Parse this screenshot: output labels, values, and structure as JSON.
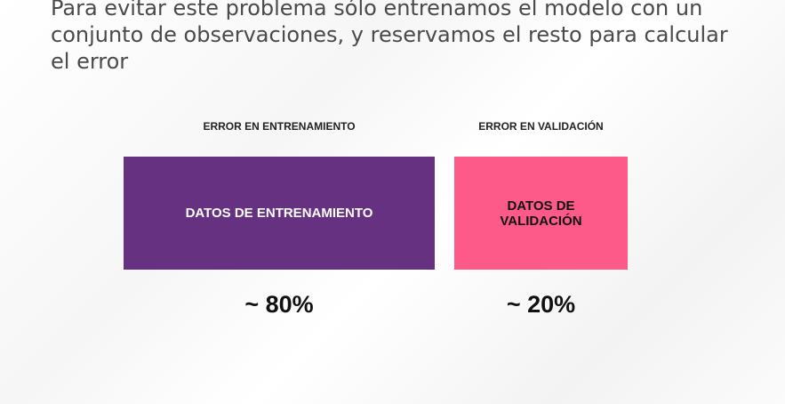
{
  "heading": "Para evitar este problema sólo entrenamos el modelo con un conjunto de observaciones, y reservamos el resto para calcular el error",
  "split": [
    {
      "error_label": "ERROR EN ENTRENAMIENTO",
      "box_label": "DATOS DE ENTRENAMIENTO",
      "share": "~ 80%"
    },
    {
      "error_label": "ERROR EN VALIDACIÓN",
      "box_label": "DATOS DE VALIDACIÓN",
      "share": "~ 20%"
    }
  ]
}
